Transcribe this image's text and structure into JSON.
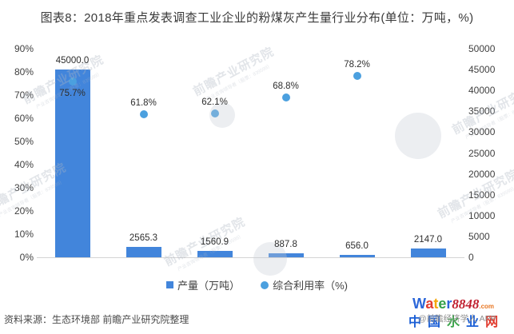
{
  "title": "图表8：2018年重点发表调查工业企业的粉煤灰产生量行业分布(单位：万吨，%)",
  "chart_data": {
    "type": "combo",
    "categories": [
      "",
      "",
      "",
      "",
      "",
      ""
    ],
    "series": [
      {
        "name": "产量（万吨）",
        "type": "bar",
        "axis": "right",
        "values": [
          45000.0,
          2565.3,
          1560.9,
          887.8,
          656.0,
          2147.0
        ],
        "labels": [
          "45000.0",
          "2565.3",
          "1560.9",
          "887.8",
          "656.0",
          "2147.0"
        ],
        "color": "#4285DB"
      },
      {
        "name": "综合利用率（%)",
        "type": "scatter",
        "axis": "left",
        "values": [
          75.7,
          61.8,
          62.1,
          68.8,
          78.2,
          null
        ],
        "labels": [
          "75.7%",
          "61.8%",
          "62.1%",
          "68.8%",
          "78.2%",
          null
        ],
        "color": "#4BA0DF"
      }
    ],
    "left_axis": {
      "min": 0,
      "max": 90,
      "step": 10,
      "suffix": "%"
    },
    "right_axis": {
      "min": 0,
      "max": 50000,
      "step": 5000,
      "suffix": ""
    },
    "grid": false,
    "legend_position": "bottom"
  },
  "footer": {
    "source": "资料来源：生态环境部 前瞻产业研究院整理",
    "credit": "@前瞻经济学人 APP",
    "site_name": "中国水业网",
    "site_colors": [
      "#1B5FD6",
      "#1B5FD6",
      "#3BA54A",
      "#1B5FD6",
      "#E23B2E"
    ]
  },
  "logo": {
    "part1": "Water",
    "part1_colors": [
      "#2B66D9",
      "#E23B2E",
      "#F5A70A",
      "#33A04A",
      "#2B66D9"
    ],
    "part2": "8848",
    "part2_color": "#C01E2E",
    "part3": ".com",
    "part3_color": "#E87722"
  },
  "watermark": {
    "text": "前瞻产业研究院",
    "subtext": "产业咨询领导者（股票：839599）"
  }
}
